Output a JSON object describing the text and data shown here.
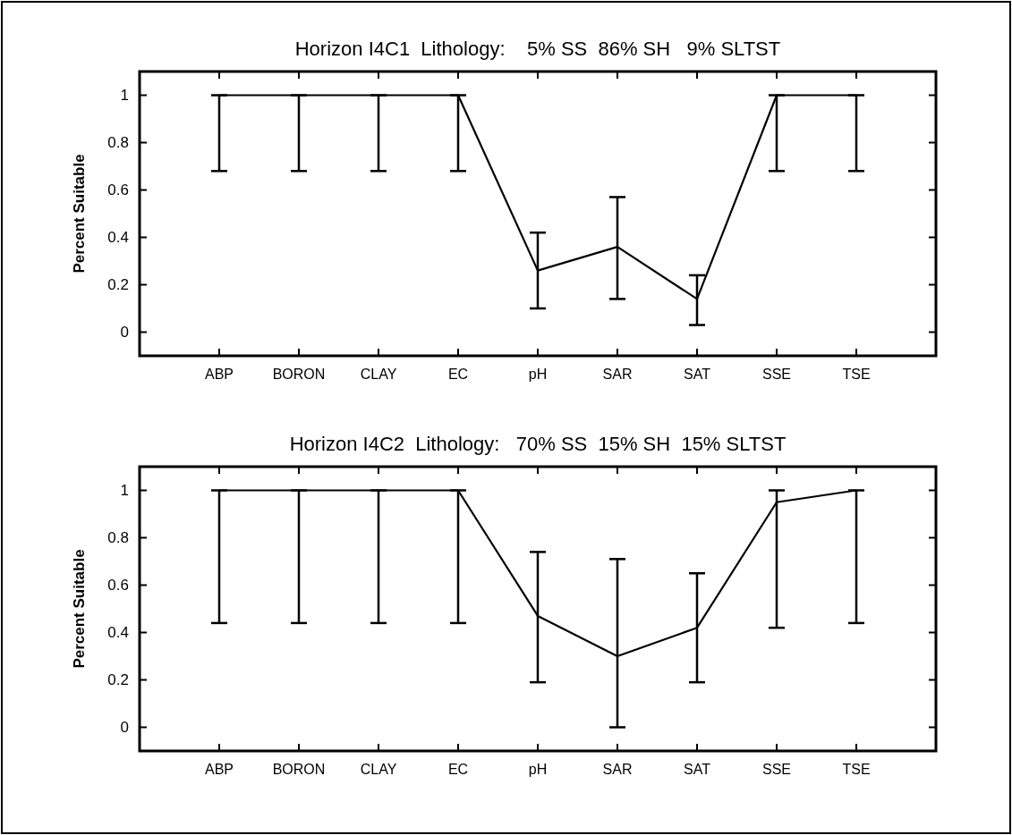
{
  "chart_data": [
    {
      "type": "line",
      "title": "Horizon I4C1  Lithology:    5% SS  86% SH   9% SLTST",
      "ylabel": "Percent Suitable",
      "categories": [
        "ABP",
        "BORON",
        "CLAY",
        "EC",
        "pH",
        "SAR",
        "SAT",
        "SSE",
        "TSE"
      ],
      "series": [
        {
          "color": "#000000",
          "values": [
            1,
            1,
            1,
            1,
            0.26,
            0.36,
            0.14,
            1,
            1
          ],
          "errors": [
            [
              0.68,
              1
            ],
            [
              0.68,
              1
            ],
            [
              0.68,
              1
            ],
            [
              0.68,
              1
            ],
            [
              0.1,
              0.42
            ],
            [
              0.14,
              0.57
            ],
            [
              0.03,
              0.24
            ],
            [
              0.68,
              1
            ],
            [
              0.68,
              1
            ]
          ]
        }
      ],
      "ylim": [
        -0.1,
        1.1
      ],
      "yticks": [
        0,
        0.2,
        0.4,
        0.6,
        0.8,
        1
      ],
      "marker": "none",
      "line_style": "solid"
    },
    {
      "type": "line",
      "title": "Horizon I4C2  Lithology:   70% SS  15% SH  15% SLTST",
      "ylabel": "Percent Suitable",
      "categories": [
        "ABP",
        "BORON",
        "CLAY",
        "EC",
        "pH",
        "SAR",
        "SAT",
        "SSE",
        "TSE"
      ],
      "series": [
        {
          "color": "#000000",
          "values": [
            1,
            1,
            1,
            1,
            0.47,
            0.3,
            0.42,
            0.95,
            1
          ],
          "errors": [
            [
              0.44,
              1
            ],
            [
              0.44,
              1
            ],
            [
              0.44,
              1
            ],
            [
              0.44,
              1
            ],
            [
              0.19,
              0.74
            ],
            [
              0,
              0.71
            ],
            [
              0.19,
              0.65
            ],
            [
              0.42,
              1
            ],
            [
              0.44,
              1
            ]
          ]
        }
      ],
      "ylim": [
        -0.1,
        1.1
      ],
      "yticks": [
        0,
        0.2,
        0.4,
        0.6,
        0.8,
        1
      ],
      "marker": "none",
      "line_style": "solid"
    }
  ]
}
